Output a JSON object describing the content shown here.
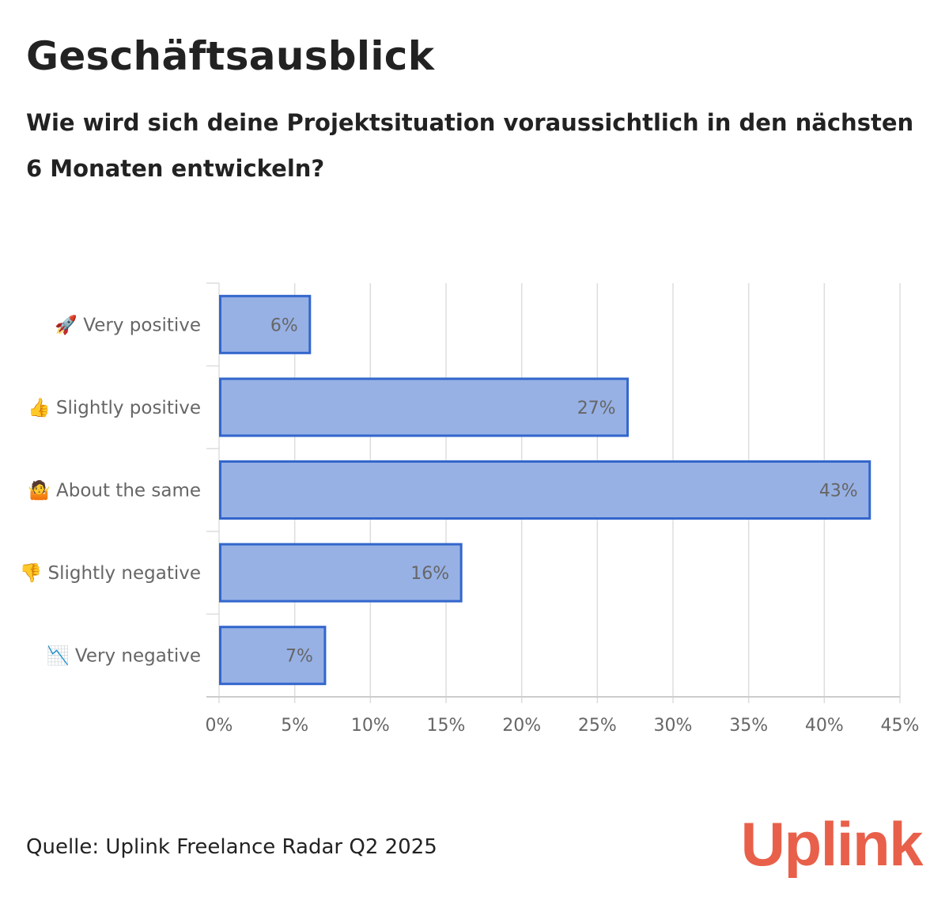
{
  "header": {
    "title": "Geschäftsausblick",
    "subtitle": "Wie wird sich deine Projektsituation voraussichtlich in den nächsten 6 Monaten entwickeln?"
  },
  "footer": {
    "source": "Quelle: Uplink Freelance Radar Q2 2025",
    "logo": "Uplink"
  },
  "colors": {
    "bar_fill": "#97b1e5",
    "bar_stroke": "#3366cc",
    "grid": "#dddddd",
    "tick_text": "#666666",
    "logo": "#e8604a"
  },
  "chart_data": {
    "type": "bar",
    "orientation": "horizontal",
    "categories": [
      "🚀 Very positive",
      "👍 Slightly positive",
      "🤷 About the same",
      "👎 Slightly negative",
      "📉 Very negative"
    ],
    "values": [
      6,
      27,
      43,
      16,
      7
    ],
    "value_labels": [
      "6%",
      "27%",
      "43%",
      "16%",
      "7%"
    ],
    "xlim": [
      0,
      45
    ],
    "xticks": [
      0,
      5,
      10,
      15,
      20,
      25,
      30,
      35,
      40,
      45
    ],
    "xtick_labels": [
      "0%",
      "5%",
      "10%",
      "15%",
      "20%",
      "25%",
      "30%",
      "35%",
      "40%",
      "45%"
    ],
    "grid": true,
    "legend": "none"
  }
}
